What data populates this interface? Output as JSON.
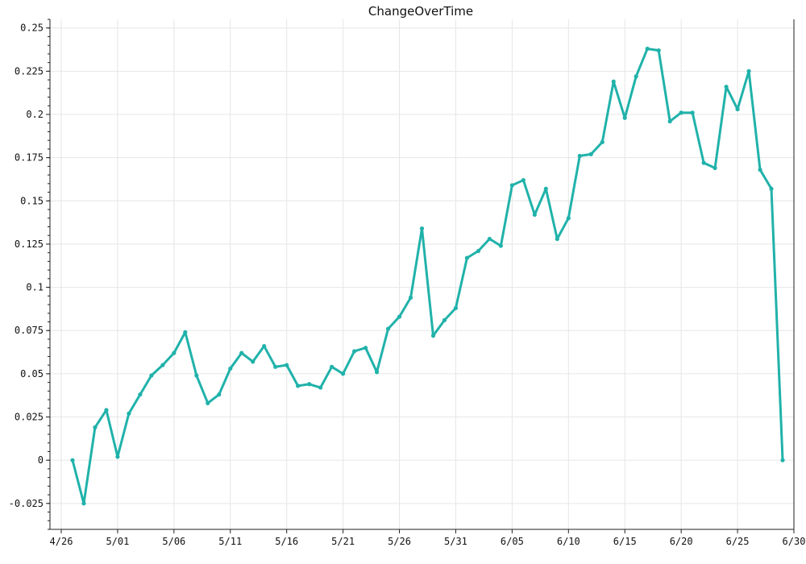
{
  "chart_data": {
    "type": "line",
    "title": "ChangeOverTime",
    "xlabel": "",
    "ylabel": "",
    "x_ticks": [
      "4/26",
      "5/01",
      "5/06",
      "5/11",
      "5/16",
      "5/21",
      "5/26",
      "5/31",
      "6/05",
      "6/10",
      "6/15",
      "6/20",
      "6/25",
      "6/30"
    ],
    "y_ticks": [
      "0.25",
      "0.225",
      "0.2",
      "0.175",
      "0.15",
      "0.125",
      "0.1",
      "0.075",
      "0.05",
      "0.025",
      "0",
      "-0.025"
    ],
    "y_tick_values": [
      0.25,
      0.225,
      0.2,
      0.175,
      0.15,
      0.125,
      0.1,
      0.075,
      0.05,
      0.025,
      0,
      -0.025
    ],
    "ylim": [
      -0.04,
      0.255
    ],
    "xlim": [
      "4/25",
      "6/30"
    ],
    "grid": true,
    "colors": {
      "line": "#20b2aa",
      "marker": "#20b2aa",
      "axis": "#222222",
      "grid": "#e6e6e6"
    },
    "series": [
      {
        "x": [
          "4/27",
          "4/28",
          "4/29",
          "4/30",
          "5/01",
          "5/02",
          "5/03",
          "5/04",
          "5/05",
          "5/06",
          "5/07",
          "5/08",
          "5/09",
          "5/10",
          "5/11",
          "5/12",
          "5/13",
          "5/14",
          "5/15",
          "5/16",
          "5/17",
          "5/18",
          "5/19",
          "5/20",
          "5/21",
          "5/22",
          "5/23",
          "5/24",
          "5/25",
          "5/26",
          "5/27",
          "5/28",
          "5/29",
          "5/30",
          "5/31",
          "6/01",
          "6/02",
          "6/03",
          "6/04",
          "6/05",
          "6/06",
          "6/07",
          "6/08",
          "6/09",
          "6/10",
          "6/11",
          "6/12",
          "6/13",
          "6/14",
          "6/15",
          "6/16",
          "6/17",
          "6/18",
          "6/19",
          "6/20",
          "6/21",
          "6/22",
          "6/23",
          "6/24",
          "6/25",
          "6/26",
          "6/27",
          "6/28",
          "6/29"
        ],
        "values": [
          0.0,
          -0.025,
          0.019,
          0.029,
          0.002,
          0.027,
          0.038,
          0.049,
          0.055,
          0.062,
          0.074,
          0.049,
          0.033,
          0.038,
          0.053,
          0.062,
          0.057,
          0.066,
          0.054,
          0.055,
          0.043,
          0.044,
          0.042,
          0.054,
          0.05,
          0.063,
          0.065,
          0.051,
          0.076,
          0.083,
          0.094,
          0.134,
          0.072,
          0.081,
          0.088,
          0.117,
          0.121,
          0.128,
          0.124,
          0.159,
          0.162,
          0.142,
          0.157,
          0.128,
          0.14,
          0.176,
          0.177,
          0.184,
          0.219,
          0.198,
          0.222,
          0.238,
          0.237,
          0.196,
          0.201,
          0.201,
          0.172,
          0.169,
          0.216,
          0.203,
          0.225,
          0.168,
          0.157,
          0.0
        ]
      }
    ]
  }
}
